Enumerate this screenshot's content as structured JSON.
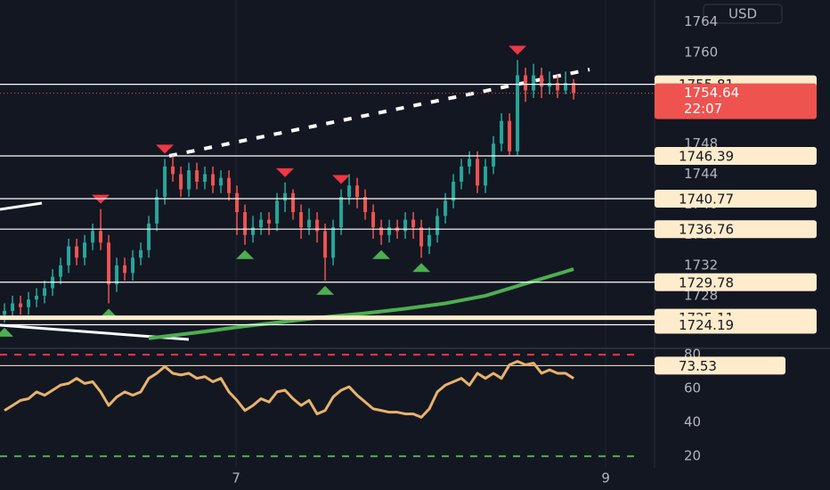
{
  "chart_data": [
    {
      "type": "candlestick",
      "currency": "USD",
      "xlim": [
        -0.56,
        81.1
      ],
      "xticks": [
        {
          "value": 28.9,
          "label": "7"
        },
        {
          "value": 75,
          "label": "9"
        }
      ],
      "ylim": [
        1721.2,
        1766.9
      ],
      "yticks": [
        1764,
        1760,
        1756,
        1752,
        1748,
        1744,
        1740,
        1736,
        1732,
        1728,
        1724
      ],
      "grid": true,
      "up_color": "#26a69a",
      "down_color": "#ef5350",
      "bars": [
        [
          1725.5,
          1727,
          1724.5,
          1726
        ],
        [
          1726,
          1728,
          1725,
          1727
        ],
        [
          1727,
          1728,
          1725.5,
          1726.5
        ],
        [
          1726.5,
          1728.5,
          1725.5,
          1727.5
        ],
        [
          1727.5,
          1729,
          1726.5,
          1728
        ],
        [
          1728,
          1730,
          1727,
          1729
        ],
        [
          1729,
          1731.5,
          1728,
          1730.5
        ],
        [
          1730.5,
          1733,
          1729.5,
          1732
        ],
        [
          1732,
          1735.5,
          1731,
          1734.5
        ],
        [
          1734.5,
          1735.5,
          1732,
          1733
        ],
        [
          1733,
          1736,
          1732,
          1735
        ],
        [
          1735,
          1737.5,
          1734,
          1736.5
        ],
        [
          1736.5,
          1739.4,
          1734,
          1735
        ],
        [
          1735,
          1736,
          1727,
          1729.5
        ],
        [
          1729.5,
          1733,
          1728.5,
          1732
        ],
        [
          1732,
          1733,
          1730,
          1731
        ],
        [
          1731,
          1734,
          1730,
          1733
        ],
        [
          1733,
          1735,
          1732,
          1734
        ],
        [
          1734,
          1738.5,
          1733,
          1737.5
        ],
        [
          1737.5,
          1742,
          1736.5,
          1741
        ],
        [
          1741,
          1746,
          1740,
          1745
        ],
        [
          1745,
          1746.5,
          1743,
          1744
        ],
        [
          1744,
          1745,
          1741,
          1742
        ],
        [
          1742,
          1745.5,
          1741,
          1744.5
        ],
        [
          1744.5,
          1745.5,
          1742,
          1743
        ],
        [
          1743,
          1745,
          1742,
          1744
        ],
        [
          1744,
          1745,
          1741.5,
          1742.5
        ],
        [
          1742.5,
          1744.5,
          1741.5,
          1743.5
        ],
        [
          1743.5,
          1744.5,
          1740.5,
          1741.5
        ],
        [
          1741.5,
          1742.5,
          1736,
          1739
        ],
        [
          1739,
          1740,
          1734.7,
          1736
        ],
        [
          1736,
          1738.5,
          1735,
          1737
        ],
        [
          1737,
          1739,
          1736,
          1738
        ],
        [
          1738,
          1739,
          1736,
          1737.5
        ],
        [
          1737.5,
          1741.5,
          1736.5,
          1740.5
        ],
        [
          1740.5,
          1742.9,
          1739,
          1741.5
        ],
        [
          1741.5,
          1742,
          1738,
          1739
        ],
        [
          1739,
          1740,
          1735.5,
          1737
        ],
        [
          1737,
          1739.5,
          1736,
          1738
        ],
        [
          1738,
          1739,
          1735,
          1736.5
        ],
        [
          1736.5,
          1737.5,
          1730,
          1733
        ],
        [
          1733,
          1738,
          1732,
          1737
        ],
        [
          1737,
          1742,
          1736,
          1741
        ],
        [
          1741,
          1744,
          1740,
          1742.5
        ],
        [
          1742.5,
          1743.5,
          1739.5,
          1741
        ],
        [
          1741,
          1742,
          1738,
          1739
        ],
        [
          1739,
          1740,
          1735.5,
          1737
        ],
        [
          1737,
          1738,
          1734.7,
          1736
        ],
        [
          1736,
          1738,
          1735,
          1737
        ],
        [
          1737,
          1738,
          1735.5,
          1736.5
        ],
        [
          1736.5,
          1739,
          1735.5,
          1738
        ],
        [
          1738,
          1739,
          1735.5,
          1737
        ],
        [
          1737,
          1738,
          1733,
          1734.5
        ],
        [
          1734.5,
          1737,
          1733.5,
          1736
        ],
        [
          1736,
          1739.5,
          1735,
          1738.5
        ],
        [
          1738.5,
          1741.5,
          1737.5,
          1740.5
        ],
        [
          1740.5,
          1744,
          1739.5,
          1743
        ],
        [
          1743,
          1746,
          1742,
          1745
        ],
        [
          1745,
          1747,
          1744,
          1746
        ],
        [
          1746,
          1747,
          1741.5,
          1742.5
        ],
        [
          1742.5,
          1746,
          1741.5,
          1745
        ],
        [
          1745,
          1749,
          1744,
          1748
        ],
        [
          1748,
          1752,
          1747,
          1751
        ],
        [
          1751,
          1752,
          1746.5,
          1747
        ],
        [
          1747,
          1759,
          1746.5,
          1757
        ],
        [
          1757,
          1758,
          1753.5,
          1755
        ],
        [
          1755,
          1758.5,
          1754,
          1757
        ],
        [
          1757,
          1758,
          1754,
          1755.5
        ],
        [
          1755.5,
          1757.5,
          1754.5,
          1756
        ],
        [
          1756,
          1757,
          1754,
          1755
        ],
        [
          1755,
          1757.5,
          1754.5,
          1756
        ],
        [
          1756,
          1756.5,
          1753.8,
          1754.64
        ]
      ],
      "sell_signals": [
        12,
        20,
        35,
        42,
        64
      ],
      "buy_signals": [
        0,
        13,
        30,
        40,
        47,
        52
      ],
      "ma": {
        "color": "#4caf50",
        "x": [
          18,
          25,
          30,
          35,
          40,
          45,
          50,
          55,
          60,
          65,
          71
        ],
        "values": [
          1722.4,
          1723.3,
          1724.0,
          1724.6,
          1725.2,
          1725.7,
          1726.3,
          1727.0,
          1728.0,
          1729.6,
          1731.5
        ]
      },
      "levels": [
        1755.81,
        1746.39,
        1740.77,
        1736.76,
        1729.78,
        1725.11,
        1724.19
      ],
      "last_price": 1754.64,
      "countdown": "22:07"
    },
    {
      "type": "line",
      "ylim": [
        13.2,
        83.2
      ],
      "yticks": [
        80,
        60,
        40,
        20
      ],
      "bands": [
        80,
        20
      ],
      "level": 73.53,
      "color": "#e8b36a",
      "values": [
        47,
        50,
        53,
        54,
        58,
        56,
        59,
        62,
        63,
        66,
        63,
        64,
        58,
        50,
        55,
        58,
        56,
        58,
        66,
        69,
        73,
        69,
        68,
        69,
        66,
        67,
        64,
        66,
        58,
        53,
        47,
        50,
        54,
        52,
        58,
        59,
        54,
        50,
        53,
        45,
        47,
        55,
        59,
        61,
        56,
        52,
        48,
        47,
        46,
        46,
        45,
        45,
        43,
        48,
        58,
        62,
        64,
        66,
        62,
        69,
        66,
        69,
        66,
        74,
        76,
        74,
        75,
        69,
        71,
        69,
        69,
        66
      ]
    }
  ]
}
